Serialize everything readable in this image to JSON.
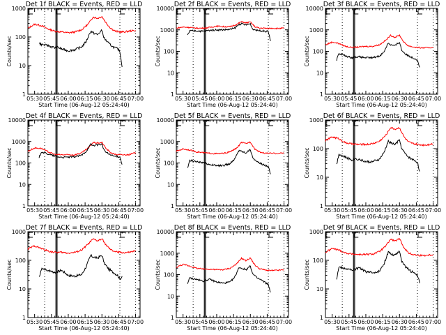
{
  "figure": {
    "xlabel": "Start Time (06-Aug-12 05:24:40)",
    "ylabel": "Counts/sec",
    "x_range_min": [
      0,
      100
    ],
    "x_start": "05:24",
    "x_ticks": [
      {
        "label": "05:30",
        "min": 6
      },
      {
        "label": "05:45",
        "min": 21
      },
      {
        "label": "06:00",
        "min": 36
      },
      {
        "label": "06:15",
        "min": 51
      },
      {
        "label": "06:30",
        "min": 66
      },
      {
        "label": "06:45",
        "min": 81
      },
      {
        "label": "07:00",
        "min": 96
      }
    ],
    "markers": {
      "dotted_lines_min": [
        15,
        82,
        96
      ],
      "solid_lines_min": [
        25,
        26
      ],
      "labels": [
        {
          "text": "E",
          "min": 0
        },
        {
          "text": "F",
          "min": 25
        },
        {
          "text": "E",
          "min": 82
        }
      ]
    },
    "series_colors": {
      "events": "#000000",
      "lld": "#ff0000"
    }
  },
  "chart_data": [
    {
      "type": "line",
      "title": "Det 1f BLACK = Events, RED = LLD",
      "ylim": [
        1,
        1000
      ],
      "yticks": [
        "1",
        "10",
        "100",
        "1000"
      ],
      "series": [
        {
          "name": "LLD",
          "x": [
            0,
            6,
            12,
            18,
            24,
            30,
            36,
            42,
            48,
            54,
            58,
            62,
            66,
            70,
            74,
            78,
            82,
            86,
            90,
            96
          ],
          "values": [
            200,
            280,
            250,
            190,
            160,
            150,
            140,
            150,
            180,
            290,
            500,
            450,
            520,
            300,
            200,
            160,
            150,
            150,
            160,
            170
          ]
        },
        {
          "name": "Events",
          "x": [
            10,
            12,
            18,
            24,
            26,
            30,
            36,
            42,
            48,
            52,
            56,
            58,
            62,
            66,
            68,
            72,
            76,
            80,
            82,
            84
          ],
          "values": [
            60,
            55,
            50,
            42,
            45,
            38,
            33,
            36,
            45,
            70,
            160,
            140,
            120,
            170,
            90,
            60,
            45,
            38,
            32,
            9
          ]
        }
      ]
    },
    {
      "type": "line",
      "title": "Det 2f BLACK = Events, RED = LLD",
      "ylim": [
        1,
        10000
      ],
      "yticks": [
        "1",
        "10",
        "100",
        "1000",
        "10000"
      ],
      "series": [
        {
          "name": "LLD",
          "x": [
            0,
            6,
            12,
            18,
            24,
            30,
            36,
            42,
            48,
            54,
            58,
            62,
            66,
            70,
            74,
            78,
            82,
            86,
            90,
            96
          ],
          "values": [
            1200,
            1350,
            1300,
            1200,
            1200,
            1300,
            1500,
            1400,
            1400,
            1800,
            2400,
            2100,
            2300,
            1400,
            1200,
            1200,
            1150,
            1200,
            1150,
            1200
          ]
        },
        {
          "name": "Events",
          "x": [
            10,
            12,
            18,
            24,
            26,
            30,
            36,
            42,
            48,
            52,
            56,
            58,
            62,
            66,
            68,
            72,
            76,
            80,
            82,
            84
          ],
          "values": [
            550,
            900,
            900,
            850,
            900,
            950,
            1000,
            1000,
            1050,
            1200,
            1800,
            1900,
            1700,
            1900,
            1100,
            950,
            900,
            850,
            850,
            300
          ]
        }
      ]
    },
    {
      "type": "line",
      "title": "Det 3f BLACK = Events, RED = LLD",
      "ylim": [
        1,
        10000
      ],
      "yticks": [
        "1",
        "10",
        "100",
        "1000",
        "10000"
      ],
      "series": [
        {
          "name": "LLD",
          "x": [
            0,
            6,
            12,
            18,
            24,
            30,
            36,
            42,
            48,
            54,
            58,
            62,
            66,
            70,
            74,
            78,
            82,
            86,
            90,
            96
          ],
          "values": [
            200,
            270,
            230,
            170,
            150,
            160,
            170,
            170,
            200,
            330,
            550,
            450,
            560,
            260,
            180,
            160,
            150,
            145,
            145,
            150
          ]
        },
        {
          "name": "Events",
          "x": [
            10,
            12,
            18,
            24,
            26,
            30,
            36,
            42,
            48,
            52,
            56,
            58,
            62,
            66,
            68,
            72,
            76,
            80,
            82,
            84
          ],
          "values": [
            40,
            80,
            60,
            50,
            55,
            55,
            50,
            50,
            60,
            90,
            250,
            200,
            180,
            270,
            110,
            70,
            55,
            45,
            40,
            18
          ]
        }
      ]
    },
    {
      "type": "line",
      "title": "Det 4f BLACK = Events, RED = LLD",
      "ylim": [
        1,
        10000
      ],
      "yticks": [
        "1",
        "10",
        "100",
        "1000",
        "10000"
      ],
      "series": [
        {
          "name": "LLD",
          "x": [
            0,
            6,
            12,
            18,
            24,
            30,
            36,
            42,
            48,
            54,
            58,
            62,
            66,
            70,
            74,
            78,
            82,
            86,
            90,
            96
          ],
          "values": [
            350,
            500,
            480,
            330,
            250,
            240,
            240,
            240,
            300,
            500,
            900,
            850,
            900,
            450,
            300,
            250,
            240,
            240,
            245,
            300
          ]
        },
        {
          "name": "Events",
          "x": [
            10,
            12,
            18,
            24,
            26,
            30,
            36,
            42,
            48,
            52,
            56,
            58,
            62,
            66,
            68,
            72,
            76,
            80,
            82,
            84
          ],
          "values": [
            180,
            330,
            260,
            210,
            195,
            185,
            185,
            195,
            230,
            350,
            750,
            650,
            700,
            760,
            380,
            260,
            210,
            200,
            195,
            85
          ]
        }
      ]
    },
    {
      "type": "line",
      "title": "Det 5f BLACK = Events, RED = LLD",
      "ylim": [
        1,
        10000
      ],
      "yticks": [
        "1",
        "10",
        "100",
        "1000",
        "10000"
      ],
      "series": [
        {
          "name": "LLD",
          "x": [
            0,
            6,
            12,
            18,
            24,
            30,
            36,
            42,
            48,
            54,
            58,
            62,
            66,
            70,
            74,
            78,
            82,
            86,
            90,
            96
          ],
          "values": [
            350,
            450,
            400,
            330,
            300,
            280,
            270,
            280,
            330,
            500,
            900,
            800,
            950,
            450,
            330,
            290,
            280,
            280,
            280,
            290
          ]
        },
        {
          "name": "Events",
          "x": [
            10,
            12,
            18,
            24,
            26,
            30,
            36,
            42,
            48,
            52,
            56,
            58,
            62,
            66,
            68,
            72,
            76,
            80,
            82,
            84
          ],
          "values": [
            60,
            130,
            115,
            100,
            95,
            85,
            75,
            75,
            95,
            150,
            400,
            350,
            300,
            430,
            180,
            110,
            90,
            75,
            70,
            30
          ]
        }
      ]
    },
    {
      "type": "line",
      "title": "Det 6f BLACK = Events, RED = LLD",
      "ylim": [
        1,
        1000
      ],
      "yticks": [
        "1",
        "10",
        "100",
        "1000"
      ],
      "series": [
        {
          "name": "LLD",
          "x": [
            0,
            6,
            12,
            18,
            24,
            30,
            36,
            42,
            48,
            54,
            58,
            62,
            66,
            70,
            74,
            78,
            82,
            86,
            90,
            96
          ],
          "values": [
            190,
            260,
            220,
            160,
            145,
            140,
            140,
            150,
            180,
            300,
            550,
            480,
            540,
            260,
            170,
            150,
            140,
            135,
            135,
            150
          ]
        },
        {
          "name": "Events",
          "x": [
            10,
            12,
            18,
            24,
            26,
            30,
            36,
            42,
            48,
            52,
            56,
            58,
            62,
            66,
            68,
            72,
            76,
            80,
            82,
            84
          ],
          "values": [
            28,
            65,
            50,
            40,
            45,
            42,
            35,
            35,
            42,
            70,
            180,
            160,
            140,
            200,
            100,
            60,
            45,
            38,
            33,
            16
          ]
        }
      ]
    },
    {
      "type": "line",
      "title": "Det 7f BLACK = Events, RED = LLD",
      "ylim": [
        1,
        1000
      ],
      "yticks": [
        "1",
        "10",
        "100",
        "1000"
      ],
      "series": [
        {
          "name": "LLD",
          "x": [
            0,
            6,
            12,
            18,
            24,
            30,
            36,
            42,
            48,
            54,
            58,
            62,
            66,
            70,
            74,
            78,
            82,
            86,
            90,
            96
          ],
          "values": [
            250,
            320,
            260,
            210,
            190,
            190,
            180,
            190,
            230,
            380,
            550,
            480,
            560,
            330,
            230,
            200,
            190,
            185,
            190,
            210
          ]
        },
        {
          "name": "Events",
          "x": [
            10,
            12,
            18,
            24,
            26,
            30,
            36,
            42,
            48,
            52,
            56,
            58,
            62,
            66,
            68,
            72,
            76,
            80,
            82,
            84
          ],
          "values": [
            25,
            50,
            45,
            38,
            40,
            45,
            30,
            28,
            32,
            60,
            150,
            130,
            120,
            150,
            80,
            50,
            38,
            30,
            22,
            28
          ]
        }
      ]
    },
    {
      "type": "line",
      "title": "Det 8f BLACK = Events, RED = LLD",
      "ylim": [
        1,
        10000
      ],
      "yticks": [
        "1",
        "10",
        "100",
        "1000",
        "10000"
      ],
      "series": [
        {
          "name": "LLD",
          "x": [
            0,
            6,
            12,
            18,
            24,
            30,
            36,
            42,
            48,
            54,
            58,
            62,
            66,
            70,
            74,
            78,
            82,
            86,
            90,
            96
          ],
          "values": [
            220,
            300,
            250,
            200,
            180,
            180,
            170,
            170,
            200,
            320,
            580,
            450,
            600,
            280,
            190,
            170,
            155,
            155,
            160,
            165
          ]
        },
        {
          "name": "Events",
          "x": [
            10,
            12,
            18,
            24,
            26,
            30,
            36,
            42,
            48,
            52,
            56,
            58,
            62,
            66,
            68,
            72,
            76,
            80,
            82,
            84
          ],
          "values": [
            40,
            70,
            60,
            50,
            55,
            60,
            45,
            40,
            45,
            75,
            220,
            200,
            170,
            250,
            110,
            70,
            55,
            40,
            35,
            15
          ]
        }
      ]
    },
    {
      "type": "line",
      "title": "Det 9f BLACK = Events, RED = LLD",
      "ylim": [
        1,
        1000
      ],
      "yticks": [
        "1",
        "10",
        "100",
        "1000"
      ],
      "series": [
        {
          "name": "LLD",
          "x": [
            0,
            6,
            12,
            18,
            24,
            30,
            36,
            42,
            48,
            54,
            58,
            62,
            66,
            70,
            74,
            78,
            82,
            86,
            90,
            96
          ],
          "values": [
            190,
            260,
            230,
            180,
            165,
            160,
            160,
            165,
            200,
            320,
            550,
            470,
            560,
            280,
            180,
            160,
            150,
            148,
            150,
            160
          ]
        },
        {
          "name": "Events",
          "x": [
            10,
            12,
            18,
            24,
            26,
            30,
            36,
            42,
            48,
            52,
            56,
            58,
            62,
            66,
            68,
            72,
            76,
            80,
            82,
            84
          ],
          "values": [
            22,
            58,
            52,
            45,
            48,
            55,
            40,
            37,
            42,
            70,
            200,
            170,
            150,
            220,
            90,
            55,
            42,
            35,
            30,
            16
          ]
        }
      ]
    }
  ]
}
